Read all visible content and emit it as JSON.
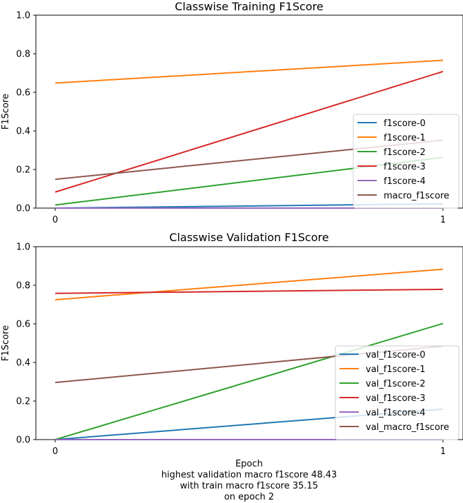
{
  "chart_data": [
    {
      "type": "line",
      "title": "Classwise Training F1Score",
      "xlabel": "",
      "ylabel": "F1Score",
      "x": [
        0,
        1
      ],
      "xticks": [
        "0",
        "1"
      ],
      "ylim": [
        0,
        1
      ],
      "yticks": [
        "0.0",
        "0.2",
        "0.4",
        "0.6",
        "0.8",
        "1.0"
      ],
      "grid": false,
      "legend_position": "lower-right",
      "series": [
        {
          "name": "f1score-0",
          "color": "#1f77b4",
          "values": [
            0.0,
            0.022
          ]
        },
        {
          "name": "f1score-1",
          "color": "#ff7f0e",
          "values": [
            0.648,
            0.766
          ]
        },
        {
          "name": "f1score-2",
          "color": "#2ca02c",
          "values": [
            0.016,
            0.263
          ]
        },
        {
          "name": "f1score-3",
          "color": "#d62728",
          "values": [
            0.083,
            0.708
          ]
        },
        {
          "name": "f1score-4",
          "color": "#9467bd",
          "values": [
            0.0,
            0.0
          ]
        },
        {
          "name": "macro_f1score",
          "color": "#8c564b",
          "values": [
            0.149,
            0.352
          ]
        }
      ]
    },
    {
      "type": "line",
      "title": "Classwise Validation F1Score",
      "xlabel": "Epoch",
      "ylabel": "F1Score",
      "x": [
        0,
        1
      ],
      "xticks": [
        "0",
        "1"
      ],
      "ylim": [
        0,
        1
      ],
      "yticks": [
        "0.0",
        "0.2",
        "0.4",
        "0.6",
        "0.8",
        "1.0"
      ],
      "grid": false,
      "legend_position": "lower-right",
      "series": [
        {
          "name": "val_f1score-0",
          "color": "#1f77b4",
          "values": [
            0.0,
            0.158
          ]
        },
        {
          "name": "val_f1score-1",
          "color": "#ff7f0e",
          "values": [
            0.725,
            0.883
          ]
        },
        {
          "name": "val_f1score-2",
          "color": "#2ca02c",
          "values": [
            0.0,
            0.602
          ]
        },
        {
          "name": "val_f1score-3",
          "color": "#d62728",
          "values": [
            0.758,
            0.779
          ]
        },
        {
          "name": "val_f1score-4",
          "color": "#9467bd",
          "values": [
            0.0,
            0.0
          ]
        },
        {
          "name": "val_macro_f1score",
          "color": "#8c564b",
          "values": [
            0.296,
            0.484
          ]
        }
      ]
    }
  ],
  "caption": {
    "line1": "highest validation macro f1score 48.43",
    "line2": "with train macro f1score 35.15",
    "line3": "on epoch 2"
  }
}
